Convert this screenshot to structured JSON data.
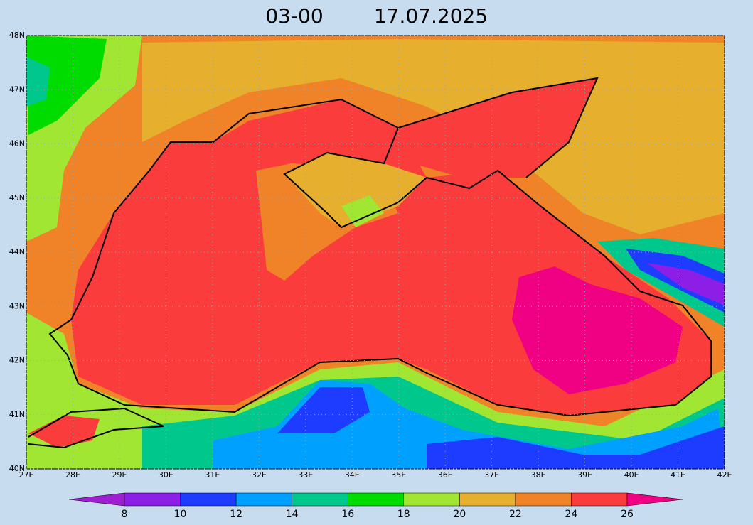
{
  "title": {
    "time": "03-00",
    "date": "17.07.2025"
  },
  "map": {
    "lat_ticks": [
      {
        "value": 40,
        "label": "40N"
      },
      {
        "value": 41,
        "label": "41N"
      },
      {
        "value": 42,
        "label": "42N"
      },
      {
        "value": 43,
        "label": "43N"
      },
      {
        "value": 44,
        "label": "44N"
      },
      {
        "value": 45,
        "label": "45N"
      },
      {
        "value": 46,
        "label": "46N"
      },
      {
        "value": 47,
        "label": "47N"
      },
      {
        "value": 48,
        "label": "48N"
      }
    ],
    "lon_ticks": [
      {
        "value": 27,
        "label": "27E"
      },
      {
        "value": 28,
        "label": "28E"
      },
      {
        "value": 29,
        "label": "29E"
      },
      {
        "value": 30,
        "label": "30E"
      },
      {
        "value": 31,
        "label": "31E"
      },
      {
        "value": 32,
        "label": "32E"
      },
      {
        "value": 33,
        "label": "33E"
      },
      {
        "value": 34,
        "label": "34E"
      },
      {
        "value": 35,
        "label": "35E"
      },
      {
        "value": 36,
        "label": "36E"
      },
      {
        "value": 37,
        "label": "37E"
      },
      {
        "value": 38,
        "label": "38E"
      },
      {
        "value": 39,
        "label": "39E"
      },
      {
        "value": 40,
        "label": "40E"
      },
      {
        "value": 41,
        "label": "41E"
      },
      {
        "value": 42,
        "label": "42E"
      }
    ]
  },
  "colorbar": {
    "ticks": [
      8,
      10,
      12,
      14,
      16,
      18,
      20,
      22,
      24,
      26
    ],
    "colors": [
      "#a01ed2",
      "#8c1ee6",
      "#1e3cff",
      "#00a0ff",
      "#00c88c",
      "#00dc00",
      "#a0e632",
      "#e6af2d",
      "#f08228",
      "#fa3c3c",
      "#f00082"
    ]
  }
}
